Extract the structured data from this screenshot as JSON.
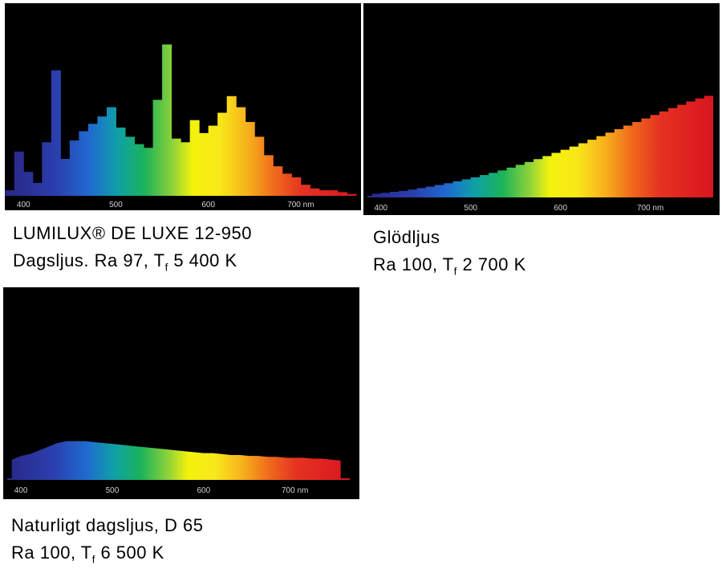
{
  "charts": [
    {
      "caption_line1": "LUMILUX® DE LUXE 12-950",
      "caption_line2_prefix": "Dagsljus. Ra 97, T",
      "caption_line2_suffix": " 5 400 K",
      "subscript": "f"
    },
    {
      "caption_line1": "Glödljus",
      "caption_line2_prefix": "Ra 100, T",
      "caption_line2_suffix": " 2 700 K",
      "subscript": "f"
    },
    {
      "caption_line1": "Naturligt dagsljus, D 65",
      "caption_line2_prefix": "Ra 100, T",
      "caption_line2_suffix": " 6 500 K",
      "subscript": "f"
    }
  ],
  "chart_data": [
    {
      "type": "area",
      "xlim": [
        385,
        760
      ],
      "ylim": [
        0,
        100
      ],
      "x_ticks": [
        "400",
        "500",
        "600",
        "700 nm"
      ],
      "x_tick_values": [
        400,
        500,
        600,
        700
      ],
      "x": [
        385,
        395,
        405,
        415,
        425,
        435,
        445,
        455,
        465,
        475,
        485,
        495,
        505,
        515,
        525,
        535,
        545,
        555,
        565,
        575,
        585,
        595,
        605,
        615,
        625,
        635,
        645,
        655,
        665,
        675,
        685,
        695,
        705,
        715,
        725,
        735,
        745,
        755
      ],
      "values": [
        3,
        24,
        13,
        7,
        29,
        68,
        20,
        30,
        35,
        39,
        43,
        48,
        37,
        32,
        28,
        26,
        52,
        82,
        31,
        29,
        41,
        34,
        38,
        45,
        54,
        48,
        40,
        32,
        22,
        16,
        12,
        10,
        6,
        4,
        3,
        3,
        2,
        1
      ]
    },
    {
      "type": "area",
      "xlim": [
        385,
        770
      ],
      "ylim": [
        0,
        100
      ],
      "x_ticks": [
        "400",
        "500",
        "600",
        "700 nm"
      ],
      "x_tick_values": [
        400,
        500,
        600,
        700
      ],
      "x": [
        390,
        400,
        410,
        420,
        430,
        440,
        450,
        460,
        470,
        480,
        490,
        500,
        510,
        520,
        530,
        540,
        550,
        560,
        570,
        580,
        590,
        600,
        610,
        620,
        630,
        640,
        650,
        660,
        670,
        680,
        690,
        700,
        710,
        720,
        730,
        740,
        750,
        760,
        770
      ],
      "values": [
        2,
        2.5,
        3,
        3.5,
        4.2,
        5,
        5.8,
        6.7,
        7.6,
        8.6,
        9.7,
        10.8,
        12,
        13.2,
        14.5,
        16,
        17.5,
        19,
        20.6,
        22.2,
        23.9,
        25.6,
        27.3,
        29.1,
        31,
        32.9,
        34.8,
        36.7,
        38.6,
        40.5,
        42.4,
        44.3,
        46.2,
        48,
        49.8,
        51.5,
        53.1,
        54.6,
        56
      ]
    },
    {
      "type": "area",
      "xlim": [
        385,
        760
      ],
      "ylim": [
        0,
        100
      ],
      "x_ticks": [
        "400",
        "500",
        "600",
        "700 nm"
      ],
      "x_tick_values": [
        400,
        500,
        600,
        700
      ],
      "x": [
        390,
        400,
        410,
        420,
        430,
        440,
        450,
        460,
        470,
        480,
        490,
        500,
        510,
        520,
        530,
        540,
        550,
        560,
        570,
        580,
        590,
        600,
        610,
        620,
        630,
        640,
        650,
        660,
        670,
        680,
        690,
        700,
        710,
        720,
        730,
        740,
        750
      ],
      "values": [
        11,
        13,
        14,
        16,
        18,
        20,
        21,
        21,
        21,
        20.5,
        20,
        19.5,
        19,
        18.5,
        18,
        17.5,
        17,
        16.5,
        16,
        15.5,
        15,
        14.5,
        14.5,
        14,
        13.5,
        13.5,
        13,
        13,
        12.5,
        12.5,
        12,
        12,
        12,
        11.5,
        11.5,
        11,
        10.5
      ]
    }
  ]
}
